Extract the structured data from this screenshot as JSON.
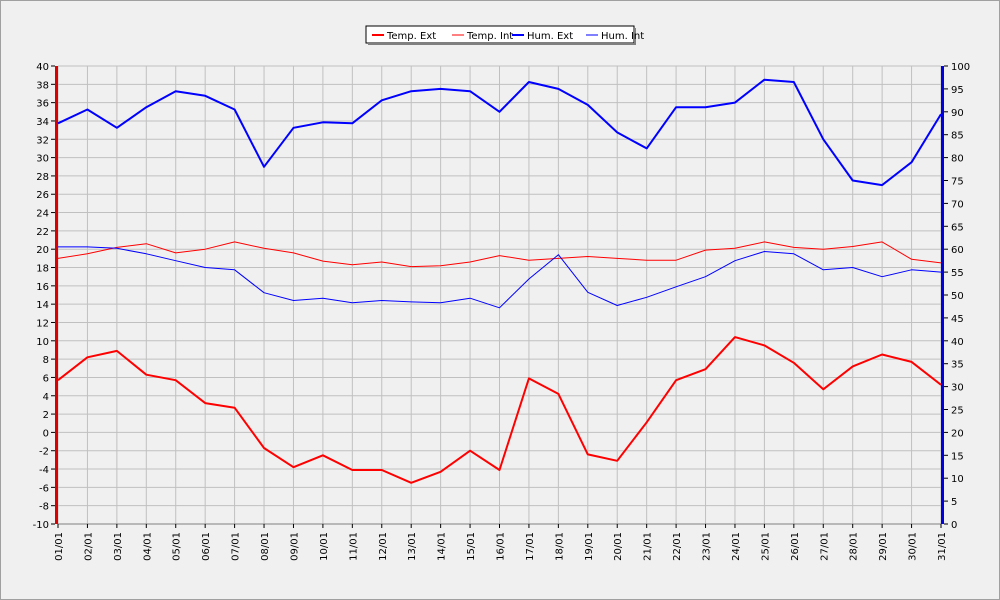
{
  "chart_data": {
    "type": "line",
    "categories": [
      "01/01",
      "02/01",
      "03/01",
      "04/01",
      "05/01",
      "06/01",
      "07/01",
      "08/01",
      "09/01",
      "10/01",
      "11/01",
      "12/01",
      "13/01",
      "14/01",
      "15/01",
      "16/01",
      "17/01",
      "18/01",
      "19/01",
      "20/01",
      "21/01",
      "22/01",
      "23/01",
      "24/01",
      "25/01",
      "26/01",
      "27/01",
      "28/01",
      "29/01",
      "30/01",
      "31/01"
    ],
    "y_left": {
      "min": -10,
      "max": 40,
      "step": 2
    },
    "y_right": {
      "min": 0,
      "max": 100,
      "step": 5
    },
    "grid": true,
    "legend_position": "top-center",
    "series": [
      {
        "name": "Temp. Ext",
        "axis": "left",
        "color": "#ff0000",
        "width": 2,
        "values": [
          5.7,
          8.2,
          8.9,
          6.3,
          5.7,
          3.2,
          2.7,
          -1.7,
          -3.8,
          -2.5,
          -4.1,
          -4.1,
          -5.5,
          -4.3,
          -2.0,
          -4.1,
          5.9,
          4.2,
          -2.4,
          -3.1,
          1.1,
          5.7,
          6.9,
          10.4,
          9.5,
          7.6,
          4.7,
          7.2,
          8.5,
          7.7,
          5.2
        ]
      },
      {
        "name": "Temp. Int",
        "axis": "left",
        "color": "#ff0000",
        "width": 1,
        "values": [
          19.0,
          19.5,
          20.2,
          20.6,
          19.6,
          20.0,
          20.8,
          20.1,
          19.6,
          18.7,
          18.3,
          18.6,
          18.1,
          18.2,
          18.6,
          19.3,
          18.8,
          19.0,
          19.2,
          19.0,
          18.8,
          18.8,
          19.9,
          20.1,
          20.8,
          20.2,
          20.0,
          20.3,
          20.8,
          18.9,
          18.5
        ]
      },
      {
        "name": "Hum. Ext",
        "axis": "right",
        "color": "#0000ff",
        "width": 2,
        "values": [
          87.5,
          90.5,
          86.5,
          91,
          94.5,
          93.5,
          90.5,
          78,
          86.5,
          87.7,
          87.5,
          92.5,
          94.5,
          95,
          94.5,
          90,
          96.5,
          95,
          91.5,
          85.5,
          82,
          91,
          91,
          92,
          97,
          96.5,
          84,
          75,
          74,
          79,
          89.5
        ]
      },
      {
        "name": "Hum. Int",
        "axis": "right",
        "color": "#0000ff",
        "width": 1,
        "values": [
          60.5,
          60.5,
          60.2,
          59,
          57.5,
          56,
          55.5,
          50.5,
          48.8,
          49.3,
          48.3,
          48.8,
          48.5,
          48.3,
          49.3,
          47.2,
          53.5,
          58.8,
          50.6,
          47.7,
          49.5,
          51.8,
          54,
          57.5,
          59.5,
          59,
          55.5,
          56,
          54,
          55.5,
          55
        ]
      }
    ]
  }
}
